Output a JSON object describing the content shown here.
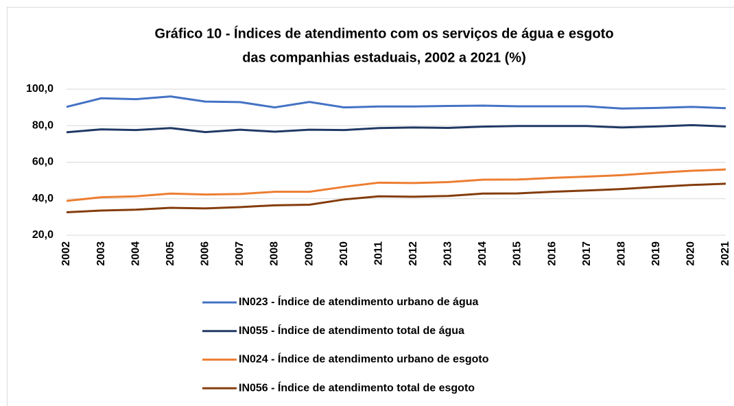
{
  "chart_data": {
    "type": "line",
    "title": [
      "Gráfico 10  - Índices de atendimento com os serviços de água e esgoto",
      "das companhias estaduais, 2002 a 2021 (%)"
    ],
    "categories": [
      "2002",
      "2003",
      "2004",
      "2005",
      "2006",
      "2007",
      "2008",
      "2009",
      "2010",
      "2011",
      "2012",
      "2013",
      "2014",
      "2015",
      "2016",
      "2017",
      "2018",
      "2019",
      "2020",
      "2021"
    ],
    "series": [
      {
        "name": "IN023 - Índice de atendimento urbano de água",
        "color": "#4472c4",
        "values": [
          90.3,
          95.0,
          94.5,
          96.0,
          93.2,
          92.9,
          90.0,
          93.0,
          90.0,
          90.5,
          90.5,
          90.8,
          91.0,
          90.6,
          90.6,
          90.6,
          89.4,
          89.7,
          90.3,
          89.6
        ]
      },
      {
        "name": "IN055 - Índice de atendimento total de água",
        "color": "#203864",
        "values": [
          76.4,
          78.0,
          77.6,
          78.7,
          76.5,
          77.8,
          76.7,
          77.8,
          77.6,
          78.7,
          79.0,
          78.8,
          79.5,
          79.8,
          79.8,
          79.8,
          79.0,
          79.6,
          80.3,
          79.6
        ]
      },
      {
        "name": "IN024 - Índice de atendimento urbano de esgoto",
        "color": "#ed7d31",
        "values": [
          38.8,
          40.8,
          41.3,
          42.8,
          42.3,
          42.6,
          43.8,
          43.8,
          46.5,
          48.8,
          48.6,
          49.1,
          50.4,
          50.5,
          51.4,
          52.1,
          52.9,
          54.2,
          55.3,
          56.0
        ]
      },
      {
        "name": "IN056 - Índice de atendimento total de esgoto",
        "color": "#843c0c",
        "values": [
          32.6,
          33.5,
          34.0,
          35.0,
          34.7,
          35.4,
          36.4,
          36.7,
          39.6,
          41.3,
          41.1,
          41.5,
          42.8,
          42.9,
          43.8,
          44.5,
          45.3,
          46.5,
          47.5,
          48.2
        ]
      }
    ],
    "ylim": [
      20,
      100
    ],
    "yticks": [
      {
        "value": 20,
        "label": "20,0"
      },
      {
        "value": 40,
        "label": "40,0"
      },
      {
        "value": 60,
        "label": "60,0"
      },
      {
        "value": 80,
        "label": "80,0"
      },
      {
        "value": 100,
        "label": "100,0"
      }
    ],
    "grid": true
  }
}
